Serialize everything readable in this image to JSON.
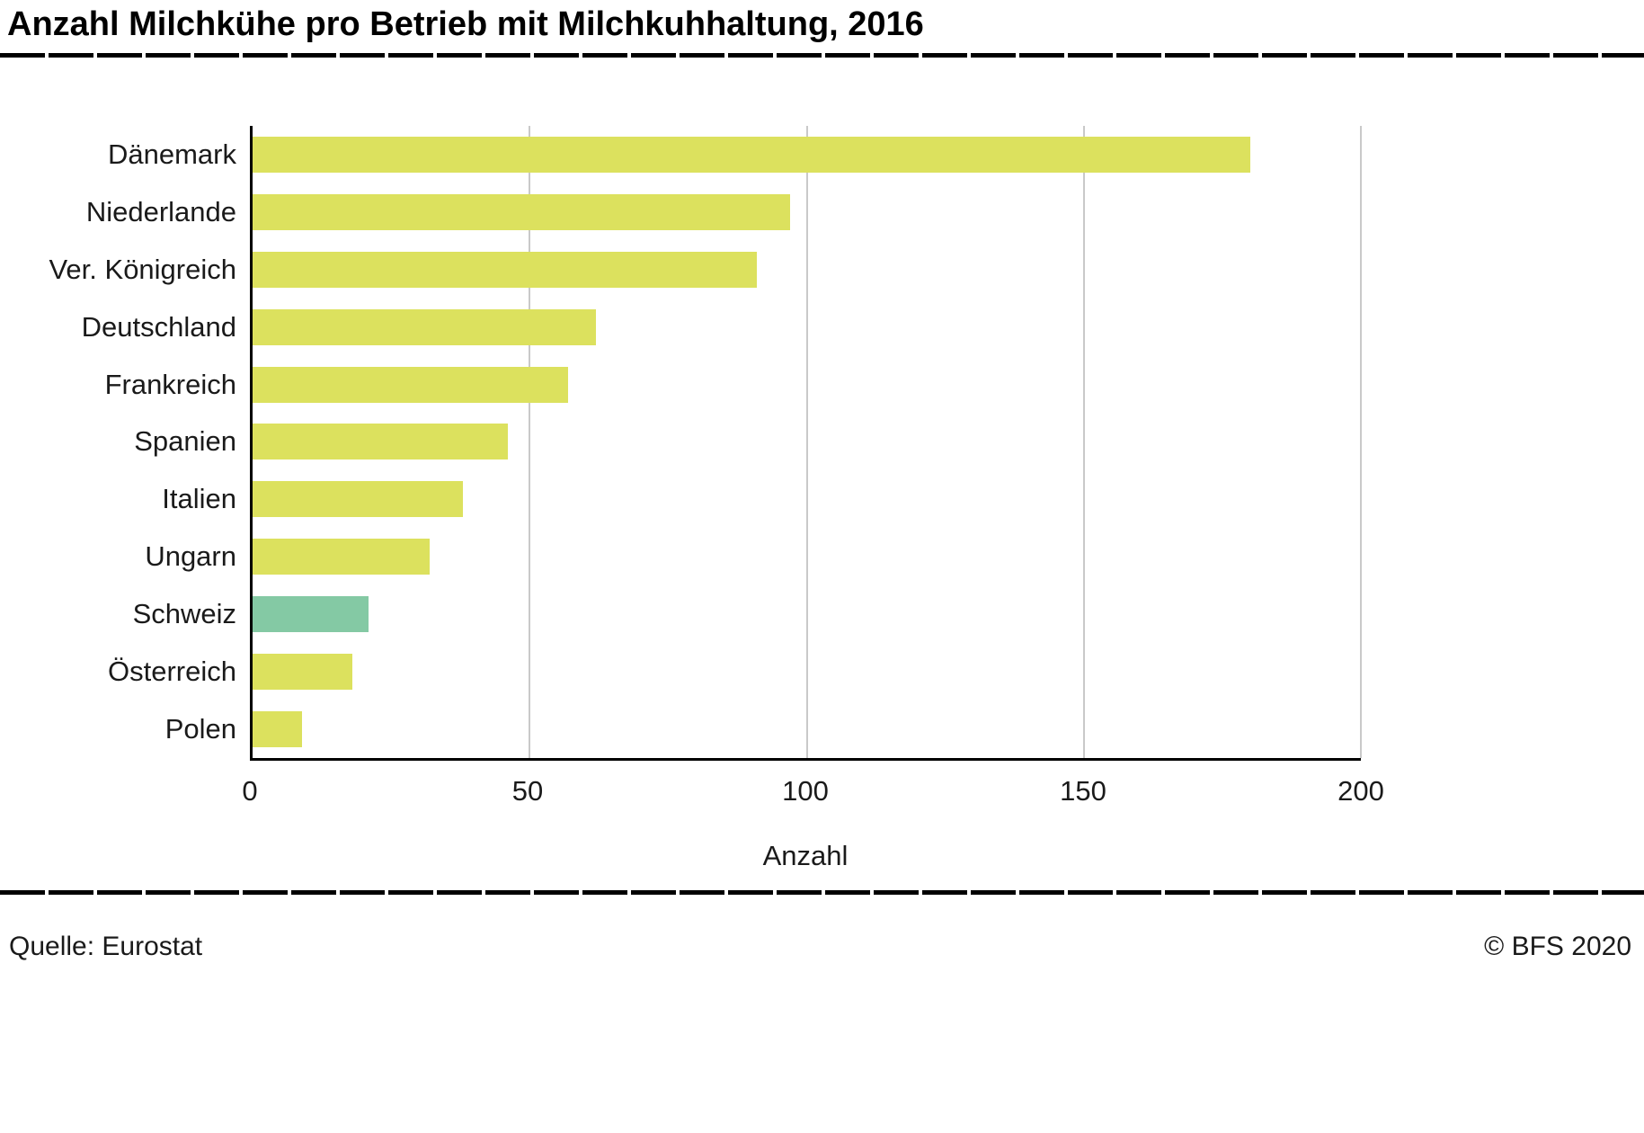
{
  "title": "Anzahl Milchkühe pro Betrieb mit Milchkuhhaltung, 2016",
  "footer": {
    "source": "Quelle: Eurostat",
    "copyright": "© BFS 2020"
  },
  "chart_data": {
    "type": "bar",
    "orientation": "horizontal",
    "title": "Anzahl Milchkühe pro Betrieb mit Milchkuhhaltung, 2016",
    "categories": [
      "Dänemark",
      "Niederlande",
      "Ver. Königreich",
      "Deutschland",
      "Frankreich",
      "Spanien",
      "Italien",
      "Ungarn",
      "Schweiz",
      "Österreich",
      "Polen"
    ],
    "values": [
      180,
      97,
      91,
      62,
      57,
      46,
      38,
      32,
      21,
      18,
      9
    ],
    "xlabel": "Anzahl",
    "ylabel": "",
    "xlim": [
      0,
      200
    ],
    "xticks": [
      0,
      50,
      100,
      150,
      200
    ],
    "grid": "vertical",
    "legend": "none",
    "highlight_category": "Schweiz",
    "colors": {
      "bar": "#dce15e",
      "highlight": "#84c9a4",
      "grid": "#c9c9c9",
      "axis": "#000000"
    }
  }
}
